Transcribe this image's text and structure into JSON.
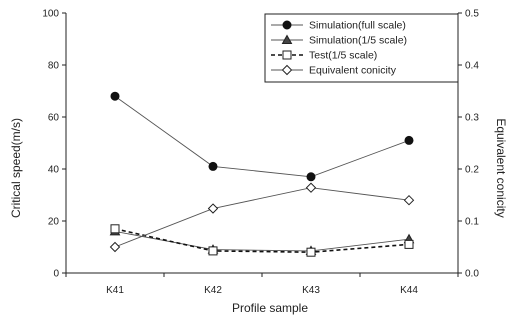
{
  "chart_data": {
    "type": "line",
    "categories": [
      "K41",
      "K42",
      "K43",
      "K44"
    ],
    "xlabel": "Profile sample",
    "ylabel": "Critical speed(m/s)",
    "y2label": "Equivalent conicity",
    "ylim": [
      0,
      100
    ],
    "y2lim": [
      0,
      0.5
    ],
    "yticks": [
      "0",
      "20",
      "40",
      "60",
      "80",
      "100"
    ],
    "y2ticks": [
      "0.0",
      "0.1",
      "0.2",
      "0.3",
      "0.4",
      "0.5"
    ],
    "legend_position": "top-right",
    "grid": false,
    "series": [
      {
        "name": "Simulation(full scale)",
        "axis": "left",
        "marker": "filled-circle",
        "line": "solid",
        "values": [
          68,
          41,
          37,
          51
        ]
      },
      {
        "name": "Simulation(1/5 scale)",
        "axis": "left",
        "marker": "filled-triangle",
        "line": "solid",
        "values": [
          16,
          9,
          8.5,
          13
        ]
      },
      {
        "name": "Test(1/5 scale)",
        "axis": "left",
        "marker": "open-square",
        "line": "dashed",
        "values": [
          17,
          8.5,
          8,
          11
        ]
      },
      {
        "name": "Equivalent conicity",
        "axis": "right",
        "marker": "open-diamond",
        "line": "solid",
        "values": [
          0.05,
          0.124,
          0.164,
          0.14
        ]
      }
    ]
  }
}
